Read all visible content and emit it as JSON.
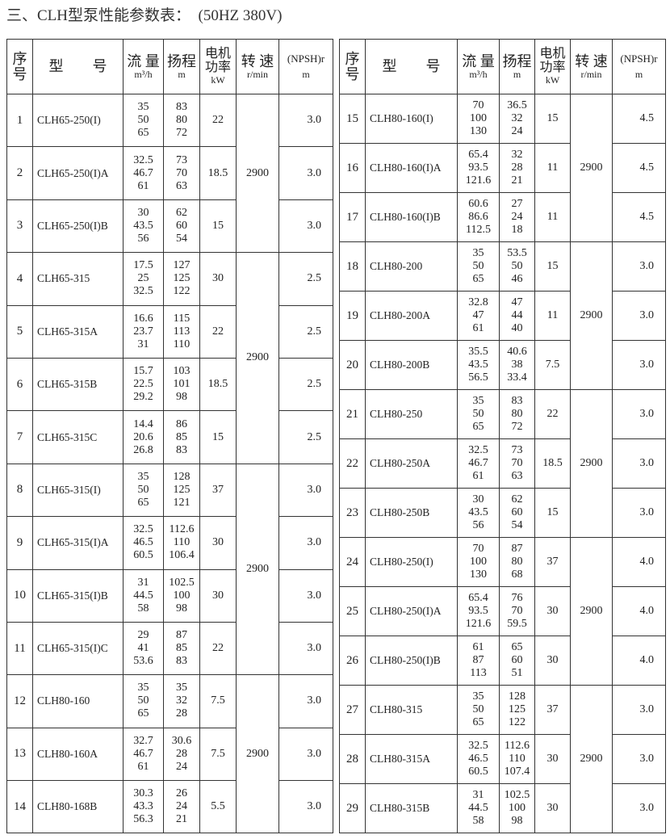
{
  "title": "三、CLH型泵性能参数表：  (50HZ 380V)",
  "headers": {
    "no": "序号",
    "model": "型　　号",
    "flow": "流 量",
    "flow_unit": "m³/h",
    "head": "扬程",
    "head_unit": "m",
    "power": "电机功率",
    "power_unit": "kW",
    "speed": "转 速",
    "speed_unit": "r/min",
    "npsh": "(NPSH)r",
    "npsh_unit": "m"
  },
  "tables": [
    {
      "rows": [
        {
          "no": "1",
          "model": "CLH65-250(I)",
          "flow": [
            "35",
            "50",
            "65"
          ],
          "head": [
            "83",
            "80",
            "72"
          ],
          "power": "22",
          "npsh": "3.0"
        },
        {
          "no": "2",
          "model": "CLH65-250(I)A",
          "flow": [
            "32.5",
            "46.7",
            "61"
          ],
          "head": [
            "73",
            "70",
            "63"
          ],
          "power": "18.5",
          "npsh": "3.0"
        },
        {
          "no": "3",
          "model": "CLH65-250(I)B",
          "flow": [
            "30",
            "43.5",
            "56"
          ],
          "head": [
            "62",
            "60",
            "54"
          ],
          "power": "15",
          "npsh": "3.0"
        },
        {
          "no": "4",
          "model": "CLH65-315",
          "flow": [
            "17.5",
            "25",
            "32.5"
          ],
          "head": [
            "127",
            "125",
            "122"
          ],
          "power": "30",
          "npsh": "2.5"
        },
        {
          "no": "5",
          "model": "CLH65-315A",
          "flow": [
            "16.6",
            "23.7",
            "31"
          ],
          "head": [
            "115",
            "113",
            "110"
          ],
          "power": "22",
          "npsh": "2.5"
        },
        {
          "no": "6",
          "model": "CLH65-315B",
          "flow": [
            "15.7",
            "22.5",
            "29.2"
          ],
          "head": [
            "103",
            "101",
            "98"
          ],
          "power": "18.5",
          "npsh": "2.5"
        },
        {
          "no": "7",
          "model": "CLH65-315C",
          "flow": [
            "14.4",
            "20.6",
            "26.8"
          ],
          "head": [
            "86",
            "85",
            "83"
          ],
          "power": "15",
          "npsh": "2.5"
        },
        {
          "no": "8",
          "model": "CLH65-315(I)",
          "flow": [
            "35",
            "50",
            "65"
          ],
          "head": [
            "128",
            "125",
            "121"
          ],
          "power": "37",
          "npsh": "3.0"
        },
        {
          "no": "9",
          "model": "CLH65-315(I)A",
          "flow": [
            "32.5",
            "46.5",
            "60.5"
          ],
          "head": [
            "112.6",
            "110",
            "106.4"
          ],
          "power": "30",
          "npsh": "3.0"
        },
        {
          "no": "10",
          "model": "CLH65-315(I)B",
          "flow": [
            "31",
            "44.5",
            "58"
          ],
          "head": [
            "102.5",
            "100",
            "98"
          ],
          "power": "30",
          "npsh": "3.0"
        },
        {
          "no": "11",
          "model": "CLH65-315(I)C",
          "flow": [
            "29",
            "41",
            "53.6"
          ],
          "head": [
            "87",
            "85",
            "83"
          ],
          "power": "22",
          "npsh": "3.0"
        },
        {
          "no": "12",
          "model": "CLH80-160",
          "flow": [
            "35",
            "50",
            "65"
          ],
          "head": [
            "35",
            "32",
            "28"
          ],
          "power": "7.5",
          "npsh": "3.0"
        },
        {
          "no": "13",
          "model": "CLH80-160A",
          "flow": [
            "32.7",
            "46.7",
            "61"
          ],
          "head": [
            "30.6",
            "28",
            "24"
          ],
          "power": "7.5",
          "npsh": "3.0"
        },
        {
          "no": "14",
          "model": "CLH80-168B",
          "flow": [
            "30.3",
            "43.3",
            "56.3"
          ],
          "head": [
            "26",
            "24",
            "21"
          ],
          "power": "5.5",
          "npsh": "3.0"
        }
      ],
      "speed_groups": [
        {
          "value": "2900",
          "rows": 3
        },
        {
          "value": "2900",
          "rows": 4
        },
        {
          "value": "2900",
          "rows": 4
        },
        {
          "value": "2900",
          "rows": 3
        }
      ]
    },
    {
      "rows": [
        {
          "no": "15",
          "model": "CLH80-160(I)",
          "flow": [
            "70",
            "100",
            "130"
          ],
          "head": [
            "36.5",
            "32",
            "24"
          ],
          "power": "15",
          "npsh": "4.5"
        },
        {
          "no": "16",
          "model": "CLH80-160(I)A",
          "flow": [
            "65.4",
            "93.5",
            "121.6"
          ],
          "head": [
            "32",
            "28",
            "21"
          ],
          "power": "11",
          "npsh": "4.5"
        },
        {
          "no": "17",
          "model": "CLH80-160(I)B",
          "flow": [
            "60.6",
            "86.6",
            "112.5"
          ],
          "head": [
            "27",
            "24",
            "18"
          ],
          "power": "11",
          "npsh": "4.5"
        },
        {
          "no": "18",
          "model": "CLH80-200",
          "flow": [
            "35",
            "50",
            "65"
          ],
          "head": [
            "53.5",
            "50",
            "46"
          ],
          "power": "15",
          "npsh": "3.0"
        },
        {
          "no": "19",
          "model": "CLH80-200A",
          "flow": [
            "32.8",
            "47",
            "61"
          ],
          "head": [
            "47",
            "44",
            "40"
          ],
          "power": "11",
          "npsh": "3.0"
        },
        {
          "no": "20",
          "model": "CLH80-200B",
          "flow": [
            "35.5",
            "43.5",
            "56.5"
          ],
          "head": [
            "40.6",
            "38",
            "33.4"
          ],
          "power": "7.5",
          "npsh": "3.0"
        },
        {
          "no": "21",
          "model": "CLH80-250",
          "flow": [
            "35",
            "50",
            "65"
          ],
          "head": [
            "83",
            "80",
            "72"
          ],
          "power": "22",
          "npsh": "3.0"
        },
        {
          "no": "22",
          "model": "CLH80-250A",
          "flow": [
            "32.5",
            "46.7",
            "61"
          ],
          "head": [
            "73",
            "70",
            "63"
          ],
          "power": "18.5",
          "npsh": "3.0"
        },
        {
          "no": "23",
          "model": "CLH80-250B",
          "flow": [
            "30",
            "43.5",
            "56"
          ],
          "head": [
            "62",
            "60",
            "54"
          ],
          "power": "15",
          "npsh": "3.0"
        },
        {
          "no": "24",
          "model": "CLH80-250(I)",
          "flow": [
            "70",
            "100",
            "130"
          ],
          "head": [
            "87",
            "80",
            "68"
          ],
          "power": "37",
          "npsh": "4.0"
        },
        {
          "no": "25",
          "model": "CLH80-250(I)A",
          "flow": [
            "65.4",
            "93.5",
            "121.6"
          ],
          "head": [
            "76",
            "70",
            "59.5"
          ],
          "power": "30",
          "npsh": "4.0"
        },
        {
          "no": "26",
          "model": "CLH80-250(I)B",
          "flow": [
            "61",
            "87",
            "113"
          ],
          "head": [
            "65",
            "60",
            "51"
          ],
          "power": "30",
          "npsh": "4.0"
        },
        {
          "no": "27",
          "model": "CLH80-315",
          "flow": [
            "35",
            "50",
            "65"
          ],
          "head": [
            "128",
            "125",
            "122"
          ],
          "power": "37",
          "npsh": "3.0"
        },
        {
          "no": "28",
          "model": "CLH80-315A",
          "flow": [
            "32.5",
            "46.5",
            "60.5"
          ],
          "head": [
            "112.6",
            "110",
            "107.4"
          ],
          "power": "30",
          "npsh": "3.0"
        },
        {
          "no": "29",
          "model": "CLH80-315B",
          "flow": [
            "31",
            "44.5",
            "58"
          ],
          "head": [
            "102.5",
            "100",
            "98"
          ],
          "power": "30",
          "npsh": "3.0"
        }
      ],
      "speed_groups": [
        {
          "value": "2900",
          "rows": 3
        },
        {
          "value": "2900",
          "rows": 3
        },
        {
          "value": "2900",
          "rows": 3
        },
        {
          "value": "2900",
          "rows": 3
        },
        {
          "value": "2900",
          "rows": 3
        }
      ]
    }
  ]
}
